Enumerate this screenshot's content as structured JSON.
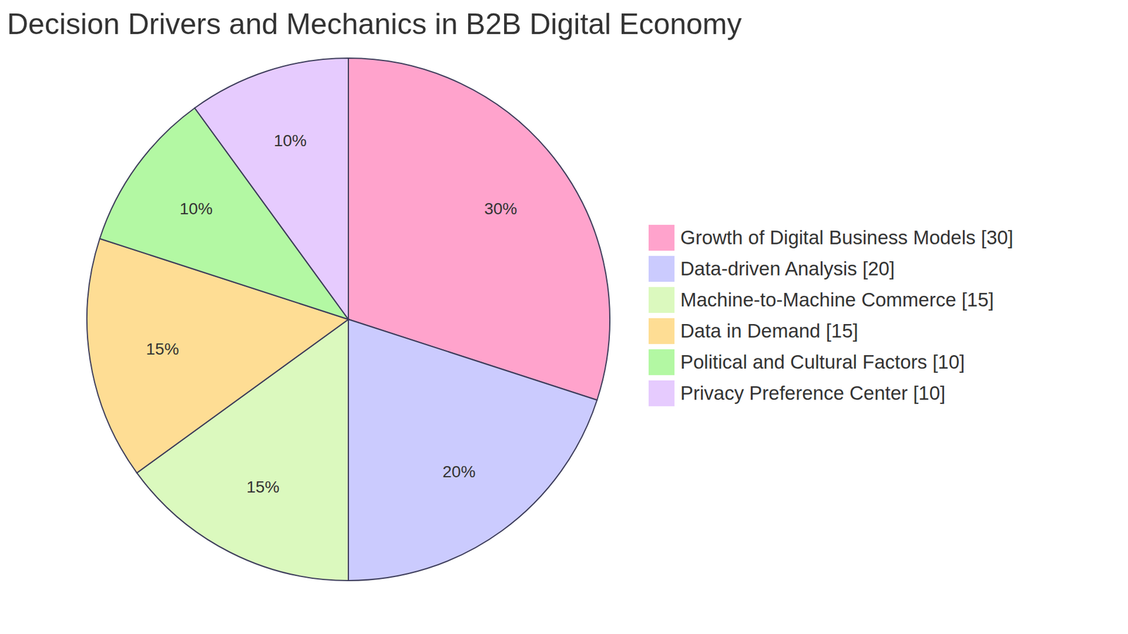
{
  "chart_data": {
    "type": "pie",
    "title": "Decision Drivers and Mechanics in B2B Digital Economy",
    "categories": [
      "Growth of Digital Business Models [30]",
      "Data-driven Analysis [20]",
      "Machine-to-Machine Commerce [15]",
      "Data in Demand [15]",
      "Political and Cultural Factors [10]",
      "Privacy Preference Center [10]"
    ],
    "values": [
      30,
      20,
      15,
      15,
      10,
      10
    ],
    "value_labels": [
      "30%",
      "20%",
      "15%",
      "15%",
      "10%",
      "10%"
    ],
    "data_labels": true,
    "colors": [
      "#ffa3cc",
      "#cbcbfe",
      "#dbf9be",
      "#fedd94",
      "#b3f8a3",
      "#e6cbfe"
    ],
    "legend": "right"
  }
}
